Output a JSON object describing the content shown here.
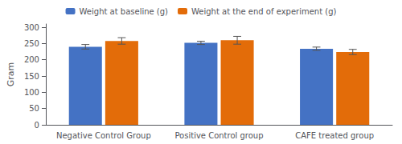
{
  "chart_data": {
    "type": "bar",
    "categories": [
      "Negative Control Group",
      "Positive Control group",
      "CAFE treated group"
    ],
    "series": [
      {
        "name": "Weight at baseline (g)",
        "color": "#4472C4",
        "values": [
          240,
          252,
          234
        ],
        "errors": [
          7,
          5,
          5
        ]
      },
      {
        "name": "Weight at the end of experiment (g)",
        "color": "#E36C09",
        "values": [
          258,
          260,
          224
        ],
        "errors": [
          10,
          12,
          8
        ]
      }
    ],
    "ylabel": "Gram",
    "ylim": [
      0,
      310
    ],
    "yticks": [
      0,
      50,
      100,
      150,
      200,
      250,
      300
    ],
    "grid": false,
    "legend": "top"
  }
}
